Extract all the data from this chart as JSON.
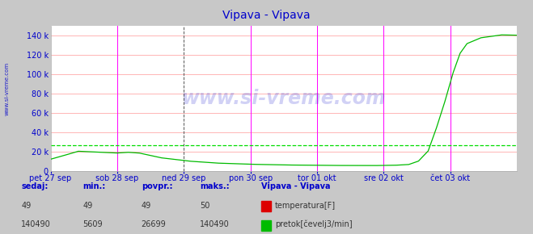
{
  "title": "Vipava - Vipava",
  "bg_color": "#c8c8c8",
  "plot_bg_color": "#ffffff",
  "grid_color_h": "#ffaaaa",
  "vline_color_major": "#ff00ff",
  "ylabel_color": "#0000cc",
  "xlabel_color": "#0000cc",
  "title_color": "#0000cc",
  "watermark": "www.si-vreme.com",
  "watermark_color": "#0000cc",
  "watermark_alpha": 0.18,
  "x_start": 0,
  "x_end": 336,
  "ylim": [
    0,
    150000
  ],
  "ytick_values": [
    0,
    20000,
    40000,
    60000,
    80000,
    100000,
    120000,
    140000
  ],
  "x_major_ticks": [
    0,
    48,
    96,
    144,
    192,
    240,
    288,
    336
  ],
  "x_major_labels": [
    "pet 27 sep",
    "sob 28 sep",
    "ned 29 sep",
    "pon 30 sep",
    "tor 01 okt",
    "sre 02 okt",
    "čet 03 okt",
    ""
  ],
  "avg_line_value": 26699,
  "avg_line_color": "#00dd00",
  "temp_line_color": "#dd0000",
  "flow_line_color": "#00bb00",
  "arrow_color": "#cc0000",
  "legend_title": "Vipava - Vipava",
  "legend_temp_label": "temperatura[F]",
  "legend_flow_label": "pretok[čevelj3/min]",
  "table_headers": [
    "sedaj:",
    "min.:",
    "povpr.:",
    "maks.:"
  ],
  "table_temp": [
    "49",
    "49",
    "49",
    "50"
  ],
  "table_flow": [
    "140490",
    "5609",
    "26699",
    "140490"
  ],
  "footer_color": "#0000cc",
  "footer_val_color": "#333333"
}
